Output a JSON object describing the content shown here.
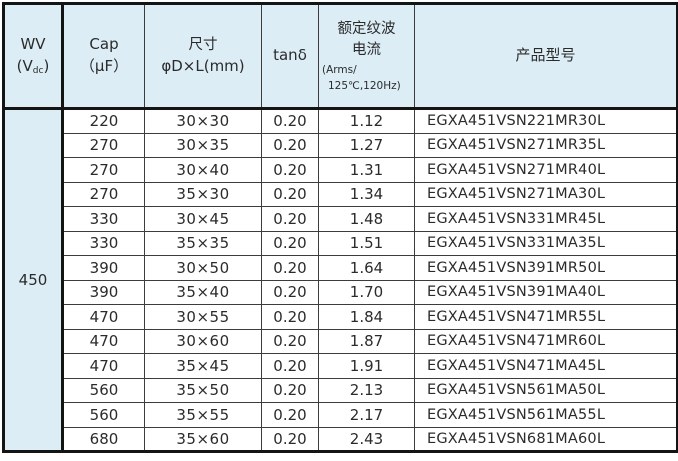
{
  "table": {
    "colors": {
      "accent_bg": "#dcedf6",
      "thick_border": "#141414",
      "grid_line": "#3c3c3c",
      "text": "#2b2b2b",
      "row_bg": "#ffffff"
    },
    "header": {
      "wv_line1": "WV",
      "wv_paren_open": "(",
      "wv_v": "V",
      "wv_sub": "dc",
      "wv_paren_close": ")",
      "cap_line1": "Cap",
      "cap_line2": "（μF）",
      "size_line1": "尺寸",
      "size_line2": "φD×L(mm)",
      "tand": "tanδ",
      "ripple_line1": "额定纹波",
      "ripple_line2": "电流",
      "ripple_line3": "(Arms/",
      "ripple_line4": "125℃,120Hz)",
      "model": "产品型号"
    },
    "wv_value": "450",
    "rows": [
      {
        "cap": "220",
        "size": "30×30",
        "tand": "0.20",
        "ripple": "1.12",
        "model": "EGXA451VSN221MR30L"
      },
      {
        "cap": "270",
        "size": "30×35",
        "tand": "0.20",
        "ripple": "1.27",
        "model": "EGXA451VSN271MR35L"
      },
      {
        "cap": "270",
        "size": "30×40",
        "tand": "0.20",
        "ripple": "1.31",
        "model": "EGXA451VSN271MR40L"
      },
      {
        "cap": "270",
        "size": "35×30",
        "tand": "0.20",
        "ripple": "1.34",
        "model": "EGXA451VSN271MA30L"
      },
      {
        "cap": "330",
        "size": "30×45",
        "tand": "0.20",
        "ripple": "1.48",
        "model": "EGXA451VSN331MR45L"
      },
      {
        "cap": "330",
        "size": "35×35",
        "tand": "0.20",
        "ripple": "1.51",
        "model": "EGXA451VSN331MA35L"
      },
      {
        "cap": "390",
        "size": "30×50",
        "tand": "0.20",
        "ripple": "1.64",
        "model": "EGXA451VSN391MR50L"
      },
      {
        "cap": "390",
        "size": "35×40",
        "tand": "0.20",
        "ripple": "1.70",
        "model": "EGXA451VSN391MA40L"
      },
      {
        "cap": "470",
        "size": "30×55",
        "tand": "0.20",
        "ripple": "1.84",
        "model": "EGXA451VSN471MR55L"
      },
      {
        "cap": "470",
        "size": "30×60",
        "tand": "0.20",
        "ripple": "1.87",
        "model": "EGXA451VSN471MR60L"
      },
      {
        "cap": "470",
        "size": "35×45",
        "tand": "0.20",
        "ripple": "1.91",
        "model": "EGXA451VSN471MA45L"
      },
      {
        "cap": "560",
        "size": "35×50",
        "tand": "0.20",
        "ripple": "2.13",
        "model": "EGXA451VSN561MA50L"
      },
      {
        "cap": "560",
        "size": "35×55",
        "tand": "0.20",
        "ripple": "2.17",
        "model": "EGXA451VSN561MA55L"
      },
      {
        "cap": "680",
        "size": "35×60",
        "tand": "0.20",
        "ripple": "2.43",
        "model": "EGXA451VSN681MA60L"
      }
    ]
  }
}
